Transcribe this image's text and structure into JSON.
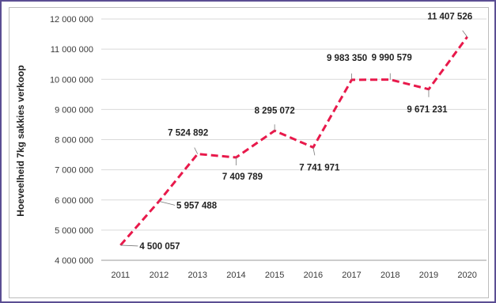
{
  "chart_data": {
    "type": "line",
    "title": "",
    "xlabel": "",
    "ylabel": "Hoeveelheid 7kg sakkies verkoop",
    "x": [
      "2011",
      "2012",
      "2013",
      "2014",
      "2015",
      "2016",
      "2017",
      "2018",
      "2019",
      "2020"
    ],
    "series": [
      {
        "values": [
          4500057,
          5957488,
          7524892,
          7409789,
          8295072,
          7741971,
          9983350,
          9990579,
          9671231,
          11407526
        ],
        "labels": [
          "4 500 057",
          "5 957 488",
          "7 524 892",
          "7 409 789",
          "8 295 072",
          "7 741 971",
          "9 983 350",
          "9 990 579",
          "9 671 231",
          "11 407 526"
        ]
      }
    ],
    "yticks": [
      4000000,
      5000000,
      6000000,
      7000000,
      8000000,
      9000000,
      10000000,
      11000000,
      12000000
    ],
    "ytick_labels": [
      "4 000 000",
      "5 000 000",
      "6 000 000",
      "7 000 000",
      "8 000 000",
      "9 000 000",
      "10 000 000",
      "11 000 000",
      "12 000 000"
    ],
    "ylim": [
      4000000,
      12000000
    ],
    "grid": true,
    "legend": "none",
    "line_color": "#e8194b",
    "line_style": "dashed",
    "frame_color": "#5b4e93"
  }
}
